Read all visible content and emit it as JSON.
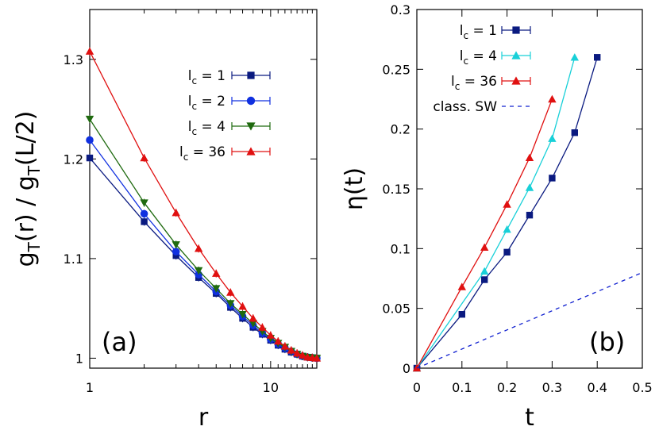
{
  "chart_data": [
    {
      "type": "line",
      "panel_label": "(a)",
      "xlabel": "r",
      "ylabel": "gₜ(r) / gₜ(L/2)",
      "ylabel_parts": {
        "g1": "g",
        "sub1": "T",
        "mid": "(r) / g",
        "sub2": "T",
        "end": "(L/2)"
      },
      "xscale": "log",
      "xlim": [
        1,
        18
      ],
      "ylim": [
        0.99,
        1.35
      ],
      "xticks": [
        {
          "v": 1,
          "label": "1"
        },
        {
          "v": 10,
          "label": "10"
        }
      ],
      "yticks": [
        {
          "v": 1.0,
          "label": "1"
        },
        {
          "v": 1.1,
          "label": "1.1"
        },
        {
          "v": 1.2,
          "label": "1.2"
        },
        {
          "v": 1.3,
          "label": "1.3"
        }
      ],
      "series": [
        {
          "name": "l_c = 1",
          "legend_main": "l",
          "legend_sub": "c",
          "legend_tail": " = 1",
          "color": "#0a1a80",
          "marker": "square",
          "x": [
            1,
            2,
            3,
            4,
            5,
            6,
            7,
            8,
            9,
            10,
            11,
            12,
            13,
            14,
            15,
            16,
            17,
            18
          ],
          "y": [
            1.201,
            1.137,
            1.103,
            1.081,
            1.065,
            1.051,
            1.04,
            1.031,
            1.024,
            1.018,
            1.013,
            1.009,
            1.006,
            1.004,
            1.002,
            1.001,
            1.0005,
            1.0
          ]
        },
        {
          "name": "l_c = 2",
          "legend_main": "l",
          "legend_sub": "c",
          "legend_tail": " = 2",
          "color": "#1030e0",
          "marker": "circle",
          "x": [
            1,
            2,
            3,
            4,
            5,
            6,
            7,
            8,
            9,
            10,
            11,
            12,
            13,
            14,
            15,
            16,
            17,
            18
          ],
          "y": [
            1.219,
            1.145,
            1.107,
            1.084,
            1.067,
            1.053,
            1.042,
            1.033,
            1.025,
            1.019,
            1.014,
            1.01,
            1.007,
            1.004,
            1.002,
            1.001,
            1.0005,
            1.0
          ]
        },
        {
          "name": "l_c = 4",
          "legend_main": "l",
          "legend_sub": "c",
          "legend_tail": " = 4",
          "color": "#1f6a0f",
          "marker": "triangle-down",
          "x": [
            1,
            2,
            3,
            4,
            5,
            6,
            7,
            8,
            9,
            10,
            11,
            12,
            13,
            14,
            15,
            16,
            17,
            18
          ],
          "y": [
            1.24,
            1.156,
            1.114,
            1.088,
            1.07,
            1.055,
            1.044,
            1.035,
            1.027,
            1.02,
            1.015,
            1.011,
            1.007,
            1.004,
            1.002,
            1.001,
            1.0005,
            1.0
          ]
        },
        {
          "name": "l_c = 36",
          "legend_main": "l",
          "legend_sub": "c",
          "legend_tail": " = 36",
          "color": "#e01010",
          "marker": "triangle-up",
          "x": [
            1,
            2,
            3,
            4,
            5,
            6,
            7,
            8,
            9,
            10,
            11,
            12,
            13,
            14,
            15,
            16,
            17,
            18
          ],
          "y": [
            1.308,
            1.201,
            1.146,
            1.11,
            1.085,
            1.066,
            1.052,
            1.04,
            1.031,
            1.023,
            1.017,
            1.012,
            1.008,
            1.005,
            1.003,
            1.001,
            1.0005,
            1.0
          ]
        }
      ]
    },
    {
      "type": "line",
      "panel_label": "(b)",
      "xlabel": "t",
      "ylabel": "η(t)",
      "xlim": [
        0,
        0.5
      ],
      "ylim": [
        0,
        0.3
      ],
      "xticks": [
        {
          "v": 0,
          "label": "0"
        },
        {
          "v": 0.1,
          "label": "0.1"
        },
        {
          "v": 0.2,
          "label": "0.2"
        },
        {
          "v": 0.3,
          "label": "0.3"
        },
        {
          "v": 0.4,
          "label": "0.4"
        },
        {
          "v": 0.5,
          "label": "0.5"
        }
      ],
      "yticks": [
        {
          "v": 0,
          "label": "0"
        },
        {
          "v": 0.05,
          "label": "0.05"
        },
        {
          "v": 0.1,
          "label": "0.1"
        },
        {
          "v": 0.15,
          "label": "0.15"
        },
        {
          "v": 0.2,
          "label": "0.2"
        },
        {
          "v": 0.25,
          "label": "0.25"
        },
        {
          "v": 0.3,
          "label": "0.3"
        }
      ],
      "series": [
        {
          "name": "l_c = 1",
          "legend_main": "l",
          "legend_sub": "c",
          "legend_tail": " = 1",
          "color": "#0a1a80",
          "marker": "square",
          "x": [
            0,
            0.1,
            0.15,
            0.2,
            0.25,
            0.3,
            0.35,
            0.4
          ],
          "y": [
            0,
            0.045,
            0.074,
            0.097,
            0.128,
            0.159,
            0.197,
            0.26
          ]
        },
        {
          "name": "l_c = 4",
          "legend_main": "l",
          "legend_sub": "c",
          "legend_tail": " = 4",
          "color": "#18d0d8",
          "marker": "triangle-up",
          "x": [
            0,
            0.15,
            0.2,
            0.25,
            0.3,
            0.35
          ],
          "y": [
            0,
            0.081,
            0.116,
            0.151,
            0.192,
            0.26
          ]
        },
        {
          "name": "l_c = 36",
          "legend_main": "l",
          "legend_sub": "c",
          "legend_tail": " = 36",
          "color": "#e01010",
          "marker": "triangle-up",
          "x": [
            0,
            0.1,
            0.15,
            0.2,
            0.25,
            0.3
          ],
          "y": [
            0,
            0.068,
            0.101,
            0.137,
            0.176,
            0.225
          ]
        },
        {
          "name": "class. SW",
          "legend_main": "class. SW",
          "legend_sub": "",
          "legend_tail": "",
          "color": "#1020d0",
          "marker": "none",
          "dashed": true,
          "x": [
            0,
            0.5
          ],
          "y": [
            0,
            0.08
          ]
        }
      ]
    }
  ]
}
